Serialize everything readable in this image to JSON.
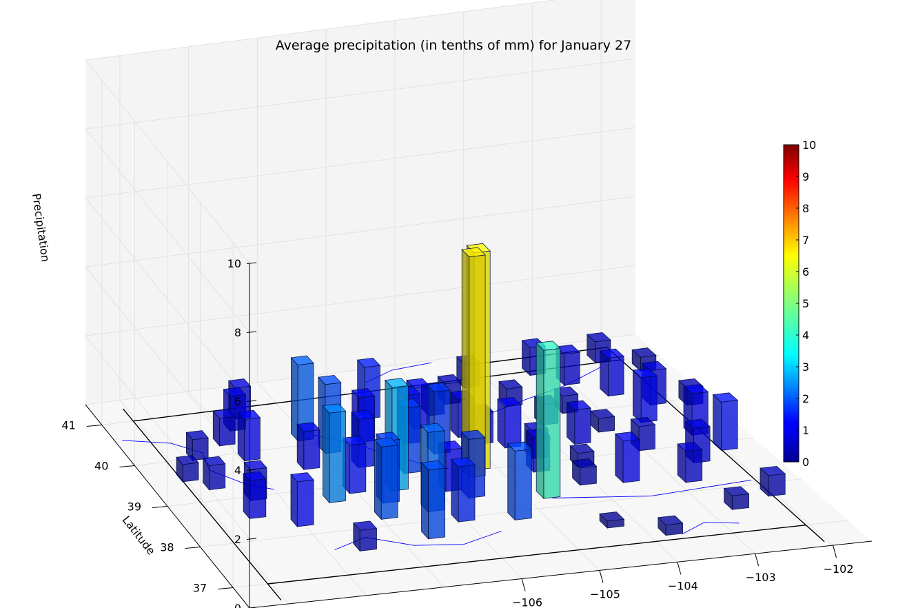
{
  "chart_data": {
    "type": "bar3d",
    "title": "Average precipitation (in tenths of mm) for January 27",
    "xlabel": "",
    "ylabel": "Latitude",
    "zlabel": "Precipitation",
    "xlim": [
      -109.5,
      -101.5
    ],
    "ylim": [
      36.5,
      41.5
    ],
    "zlim": [
      0,
      10
    ],
    "x_ticks": [
      "−106",
      "−105",
      "−104",
      "−103",
      "−102"
    ],
    "x_tick_values": [
      -106,
      -105,
      -104,
      -103,
      -102
    ],
    "y_ticks": [
      "37",
      "38",
      "39",
      "40",
      "41"
    ],
    "y_tick_values": [
      37,
      38,
      39,
      40,
      41
    ],
    "z_ticks": [
      "0",
      "2",
      "4",
      "6",
      "8",
      "10"
    ],
    "z_tick_values": [
      0,
      2,
      4,
      6,
      8,
      10
    ],
    "colorbar": {
      "colormap": "jet",
      "range": [
        0,
        10
      ],
      "ticks": [
        "0",
        "1",
        "2",
        "3",
        "4",
        "5",
        "6",
        "7",
        "8",
        "9",
        "10"
      ]
    },
    "grid": true,
    "bars": [
      {
        "lon": -108.6,
        "lat": 40.05,
        "value": 0.6
      },
      {
        "lon": -108.95,
        "lat": 39.6,
        "value": 0.5
      },
      {
        "lon": -108.7,
        "lat": 39.35,
        "value": 0.7
      },
      {
        "lon": -108.1,
        "lat": 40.3,
        "value": 0.8
      },
      {
        "lon": -107.8,
        "lat": 40.6,
        "value": 1.0
      },
      {
        "lon": -107.95,
        "lat": 39.9,
        "value": 1.2
      },
      {
        "lon": -108.3,
        "lat": 39.0,
        "value": 0.9
      },
      {
        "lon": -108.5,
        "lat": 38.6,
        "value": 1.1
      },
      {
        "lon": -108.0,
        "lat": 38.3,
        "value": 1.3
      },
      {
        "lon": -107.5,
        "lat": 37.6,
        "value": 0.6
      },
      {
        "lon": -107.6,
        "lat": 40.85,
        "value": 0.9
      },
      {
        "lon": -107.3,
        "lat": 39.55,
        "value": 1.1
      },
      {
        "lon": -107.35,
        "lat": 38.75,
        "value": 2.6
      },
      {
        "lon": -107.0,
        "lat": 38.9,
        "value": 1.4
      },
      {
        "lon": -107.05,
        "lat": 40.2,
        "value": 2.2
      },
      {
        "lon": -106.85,
        "lat": 39.85,
        "value": 2.0
      },
      {
        "lon": -106.9,
        "lat": 38.25,
        "value": 2.1
      },
      {
        "lon": -106.7,
        "lat": 38.6,
        "value": 1.8
      },
      {
        "lon": -106.6,
        "lat": 39.45,
        "value": 1.4
      },
      {
        "lon": -106.55,
        "lat": 37.7,
        "value": 2.0
      },
      {
        "lon": -106.45,
        "lat": 38.85,
        "value": 3.0
      },
      {
        "lon": -106.3,
        "lat": 40.0,
        "value": 1.3
      },
      {
        "lon": -106.25,
        "lat": 38.3,
        "value": 2.3
      },
      {
        "lon": -106.1,
        "lat": 39.2,
        "value": 1.9
      },
      {
        "lon": -106.0,
        "lat": 38.0,
        "value": 1.6
      },
      {
        "lon": -105.95,
        "lat": 40.5,
        "value": 1.5
      },
      {
        "lon": -105.75,
        "lat": 39.85,
        "value": 1.4
      },
      {
        "lon": -105.8,
        "lat": 38.7,
        "value": 1.2
      },
      {
        "lon": -105.6,
        "lat": 38.5,
        "value": 1.7
      },
      {
        "lon": -105.5,
        "lat": 39.55,
        "value": 1.8
      },
      {
        "lon": -105.45,
        "lat": 40.15,
        "value": 1.2
      },
      {
        "lon": -105.35,
        "lat": 38.95,
        "value": 6.4
      },
      {
        "lon": -105.2,
        "lat": 39.1,
        "value": 6.3
      },
      {
        "lon": -105.3,
        "lat": 37.9,
        "value": 2.0
      },
      {
        "lon": -105.1,
        "lat": 40.4,
        "value": 0.7
      },
      {
        "lon": -105.0,
        "lat": 39.85,
        "value": 1.1
      },
      {
        "lon": -104.85,
        "lat": 39.65,
        "value": 0.9
      },
      {
        "lon": -104.7,
        "lat": 38.3,
        "value": 4.3
      },
      {
        "lon": -104.75,
        "lat": 40.6,
        "value": 0.6
      },
      {
        "lon": -104.55,
        "lat": 39.5,
        "value": 1.2
      },
      {
        "lon": -104.5,
        "lat": 38.9,
        "value": 1.0
      },
      {
        "lon": -104.3,
        "lat": 40.9,
        "value": 0.7
      },
      {
        "lon": -104.35,
        "lat": 39.2,
        "value": 0.8
      },
      {
        "lon": -104.1,
        "lat": 38.5,
        "value": 0.5
      },
      {
        "lon": -104.0,
        "lat": 40.4,
        "value": 0.5
      },
      {
        "lon": -103.8,
        "lat": 39.9,
        "value": 0.6
      },
      {
        "lon": -103.9,
        "lat": 38.9,
        "value": 0.4
      },
      {
        "lon": -103.65,
        "lat": 39.4,
        "value": 1.0
      },
      {
        "lon": -103.55,
        "lat": 38.45,
        "value": 1.2
      },
      {
        "lon": -103.3,
        "lat": 41.0,
        "value": 0.8
      },
      {
        "lon": -103.4,
        "lat": 40.1,
        "value": 0.5
      },
      {
        "lon": -103.2,
        "lat": 39.6,
        "value": 0.4
      },
      {
        "lon": -103.0,
        "lat": 40.7,
        "value": 0.9
      },
      {
        "lon": -102.95,
        "lat": 39.1,
        "value": 0.7
      },
      {
        "lon": -102.8,
        "lat": 38.3,
        "value": 0.9
      },
      {
        "lon": -102.6,
        "lat": 40.35,
        "value": 1.1
      },
      {
        "lon": -102.55,
        "lat": 39.7,
        "value": 1.3
      },
      {
        "lon": -102.45,
        "lat": 38.7,
        "value": 1.0
      },
      {
        "lon": -102.3,
        "lat": 41.1,
        "value": 0.6
      },
      {
        "lon": -102.2,
        "lat": 40.05,
        "value": 1.0
      },
      {
        "lon": -102.1,
        "lat": 39.3,
        "value": 1.2
      },
      {
        "lon": -101.95,
        "lat": 38.9,
        "value": 1.4
      },
      {
        "lon": -101.85,
        "lat": 40.8,
        "value": 0.4
      },
      {
        "lon": -101.75,
        "lat": 39.95,
        "value": 0.5
      },
      {
        "lon": -103.7,
        "lat": 37.2,
        "value": 0.3
      },
      {
        "lon": -104.3,
        "lat": 37.5,
        "value": 0.2
      },
      {
        "lon": -102.6,
        "lat": 37.6,
        "value": 0.4
      },
      {
        "lon": -102.0,
        "lat": 37.8,
        "value": 0.6
      }
    ]
  }
}
